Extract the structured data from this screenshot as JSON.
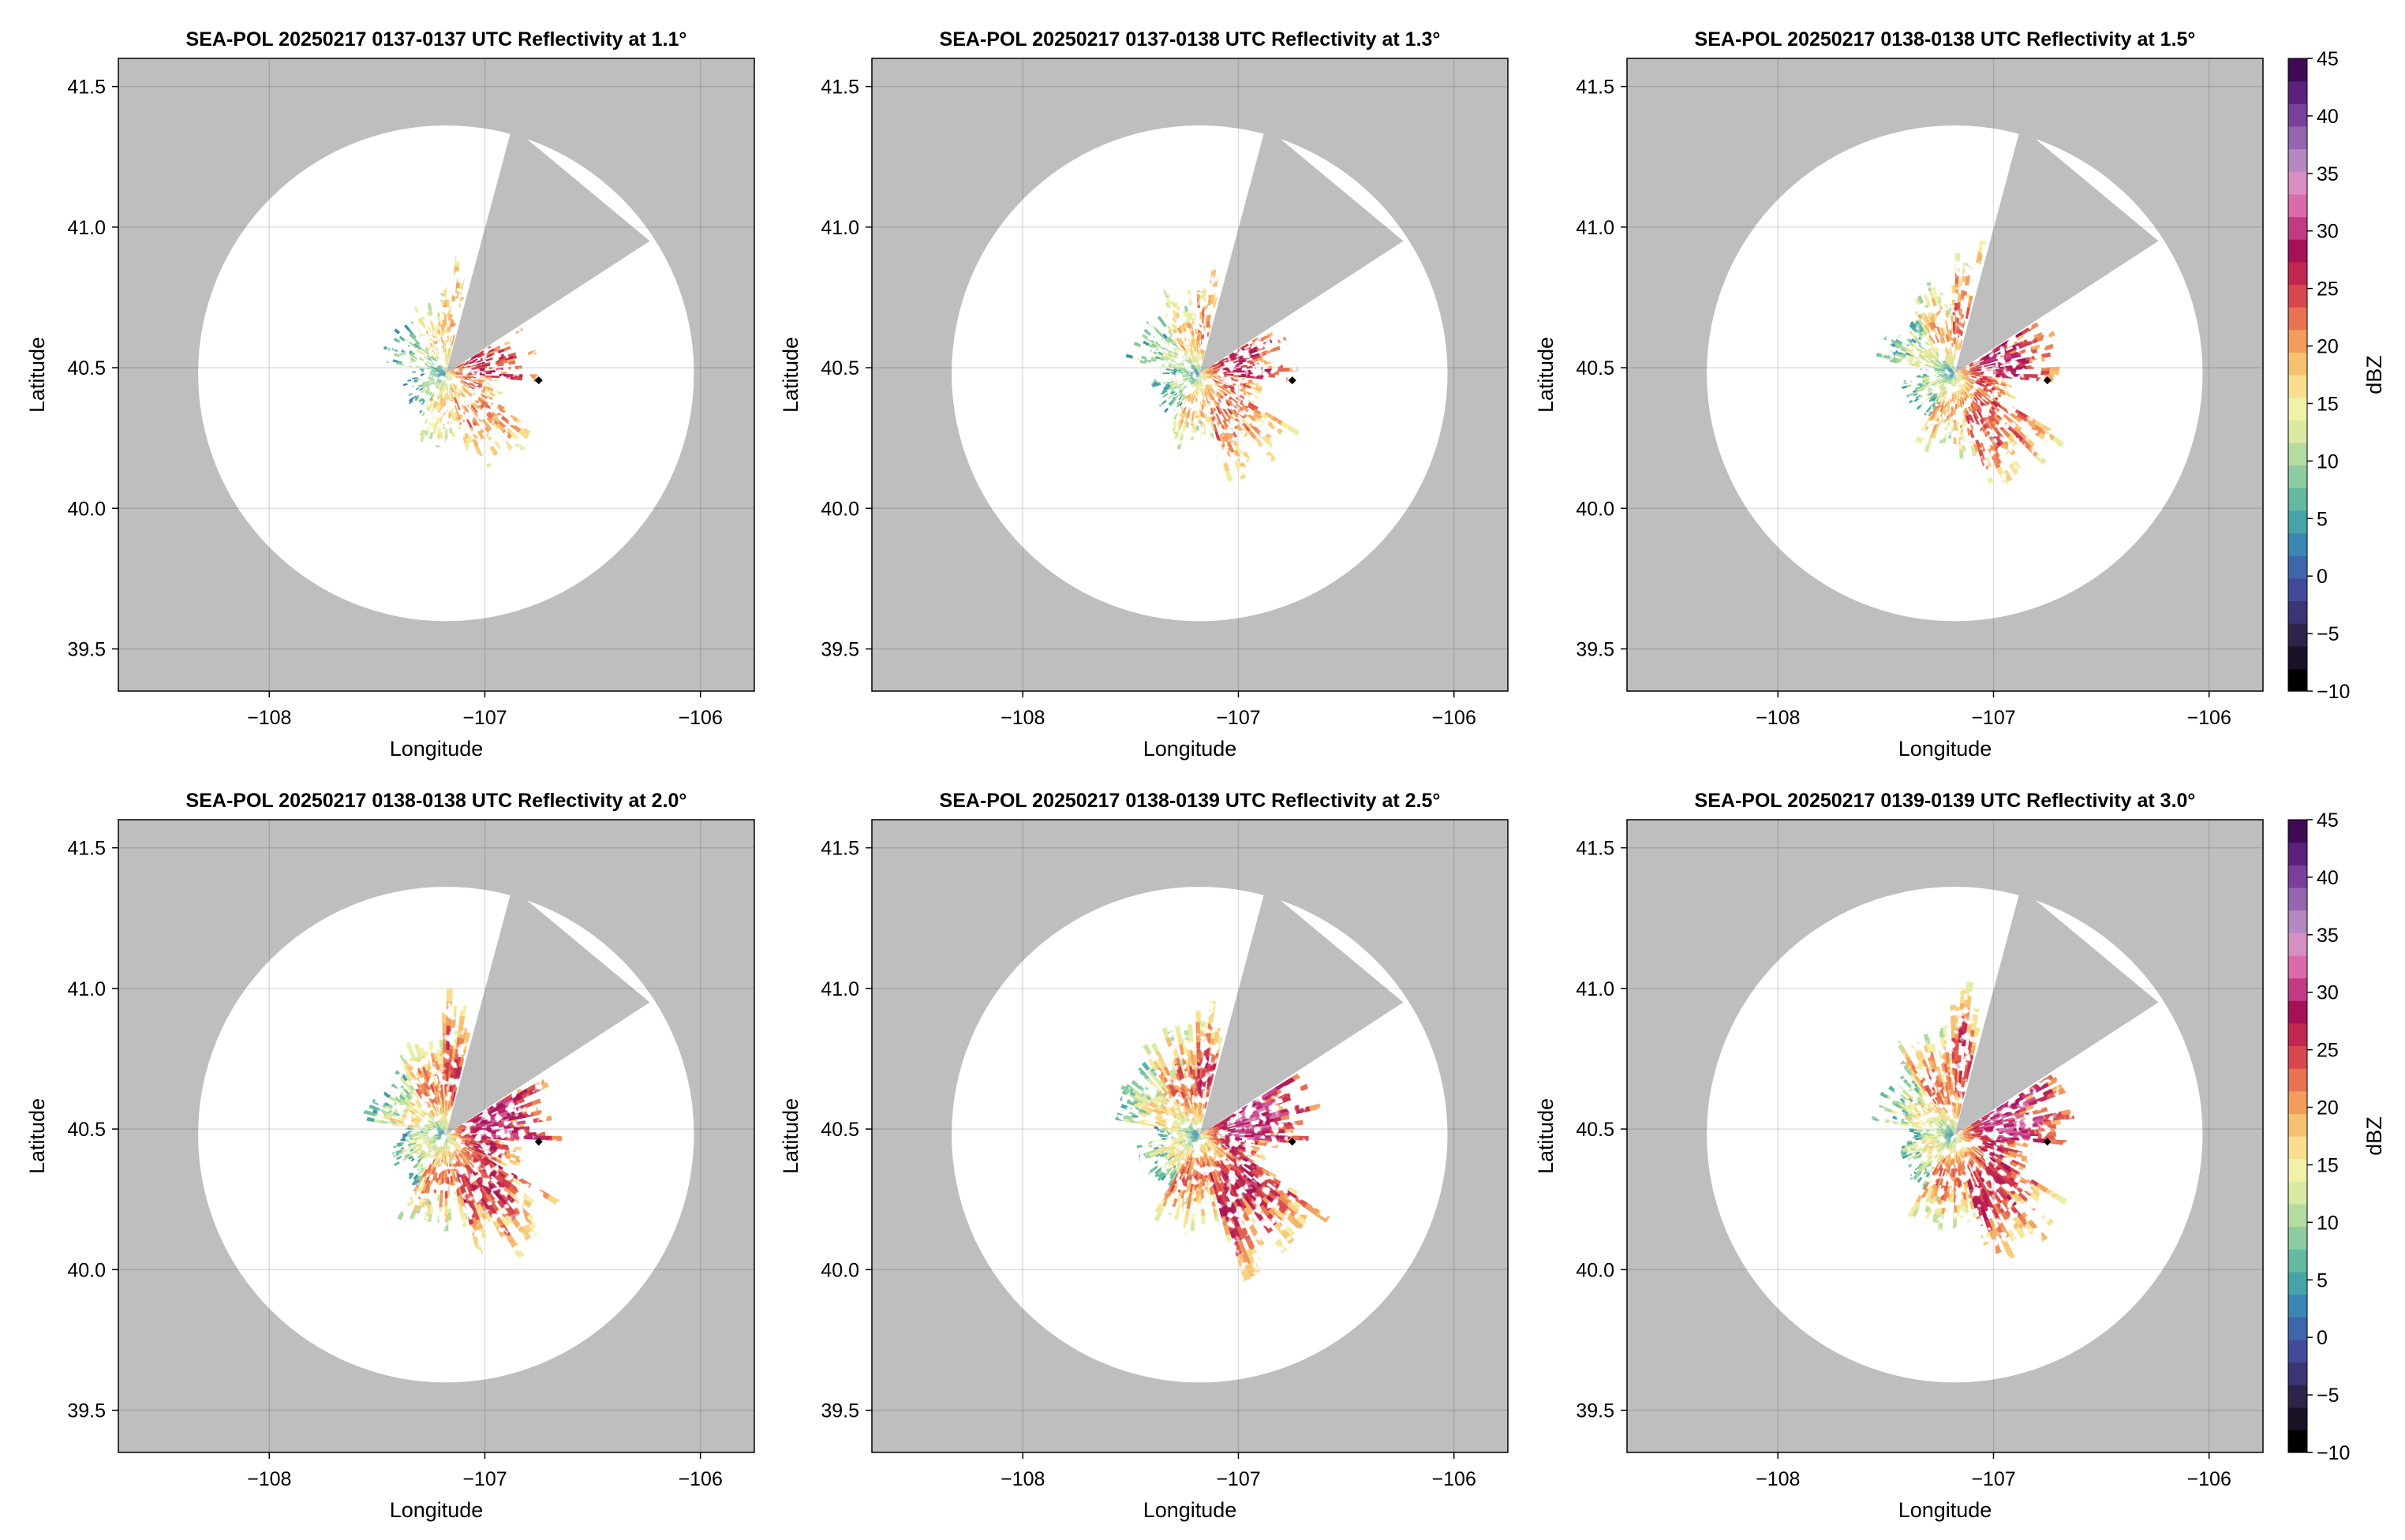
{
  "chart_data": {
    "type": "heatmap",
    "xlabel": "Longitude",
    "ylabel": "Latitude",
    "xlim": [
      -108.7,
      -105.75
    ],
    "ylim": [
      39.35,
      41.6
    ],
    "xticks": [
      -108,
      -107,
      -106
    ],
    "yticks": [
      39.5,
      40.0,
      40.5,
      41.0,
      41.5
    ],
    "xtick_labels": [
      "−108",
      "−107",
      "−106"
    ],
    "ytick_labels": [
      "39.5",
      "40.0",
      "40.5",
      "41.0",
      "41.5"
    ],
    "grid": true,
    "radar_site": {
      "lon": -107.18,
      "lat": 40.48,
      "range_deg": 1.15
    },
    "blocked_sector": {
      "color": "#bebebe",
      "azimuth_from_deg": 15,
      "azimuth_to_deg": 57
    },
    "marker_point": {
      "lon": -106.75,
      "lat": 40.455
    },
    "outside_color": "#bebebe",
    "panels": [
      {
        "title": "SEA-POL 20250217 0137-0137 UTC Reflectivity at 1.1°",
        "elevation_deg": 1.1,
        "coverage": 0.35
      },
      {
        "title": "SEA-POL 20250217 0137-0138 UTC Reflectivity at 1.3°",
        "elevation_deg": 1.3,
        "coverage": 0.48
      },
      {
        "title": "SEA-POL 20250217 0138-0138 UTC Reflectivity at 1.5°",
        "elevation_deg": 1.5,
        "coverage": 0.6
      },
      {
        "title": "SEA-POL 20250217 0138-0138 UTC Reflectivity at 2.0°",
        "elevation_deg": 2.0,
        "coverage": 0.8
      },
      {
        "title": "SEA-POL 20250217 0138-0139 UTC Reflectivity at 2.5°",
        "elevation_deg": 2.5,
        "coverage": 0.9
      },
      {
        "title": "SEA-POL 20250217 0139-0139 UTC Reflectivity at 3.0°",
        "elevation_deg": 3.0,
        "coverage": 0.85
      }
    ],
    "colorbar": {
      "label": "dBZ",
      "min": -10,
      "max": 45,
      "ticks": [
        -10,
        -5,
        0,
        5,
        10,
        15,
        20,
        25,
        30,
        35,
        40,
        45
      ],
      "tick_labels": [
        "−10",
        "−5",
        "0",
        "5",
        "10",
        "15",
        "20",
        "25",
        "30",
        "35",
        "40",
        "45"
      ],
      "colors": [
        "#000000",
        "#1a1226",
        "#2e2349",
        "#3b3573",
        "#434a9a",
        "#3e66ad",
        "#3b86b2",
        "#46a3a8",
        "#64b9a0",
        "#8ccca0",
        "#b5dca0",
        "#d9eaa1",
        "#f2f1a8",
        "#f8de8e",
        "#f7c172",
        "#f29d5d",
        "#e87352",
        "#d9474e",
        "#c02650",
        "#a41156",
        "#c23a84",
        "#db6aab",
        "#d88fc4",
        "#b488c0",
        "#9466b0",
        "#7a3f98",
        "#5d1f7c",
        "#3e0a56"
      ]
    }
  }
}
